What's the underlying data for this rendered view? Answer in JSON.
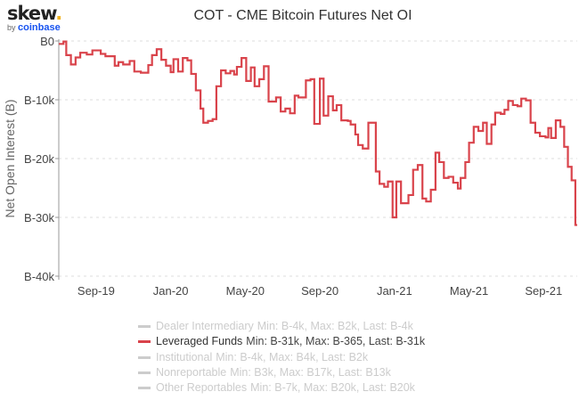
{
  "logo": {
    "brand": "skew",
    "dot": ".",
    "by": "by",
    "partner": "coinbase"
  },
  "chart_data": {
    "type": "line",
    "step": true,
    "title": "COT - CME Bitcoin Futures Net OI",
    "ylabel": "Net Open Interest (B)",
    "xlabel": "",
    "x_unit": "months since Jul-2019",
    "xlim": [
      0,
      27.8
    ],
    "ylim": [
      -40,
      0
    ],
    "y_unit": "thousand BTC",
    "yticks": [
      {
        "v": 0,
        "label": "B0"
      },
      {
        "v": -10,
        "label": "B-10k"
      },
      {
        "v": -20,
        "label": "B-20k"
      },
      {
        "v": -30,
        "label": "B-30k"
      },
      {
        "v": -40,
        "label": "B-40k"
      }
    ],
    "xticks": [
      {
        "v": 2,
        "label": "Sep-19"
      },
      {
        "v": 6,
        "label": "Jan-20"
      },
      {
        "v": 10,
        "label": "May-20"
      },
      {
        "v": 14,
        "label": "Sep-20"
      },
      {
        "v": 18,
        "label": "Jan-21"
      },
      {
        "v": 22,
        "label": "May-21"
      },
      {
        "v": 26,
        "label": "Sep-21"
      }
    ],
    "grid": true,
    "color": "#d9434b",
    "series": [
      {
        "name": "Leveraged Funds",
        "points": [
          [
            0,
            -0.5
          ],
          [
            0.25,
            -0.1
          ],
          [
            0.4,
            -2.4
          ],
          [
            0.65,
            -4.0
          ],
          [
            0.9,
            -2.8
          ],
          [
            1.15,
            -2.0
          ],
          [
            1.5,
            -2.3
          ],
          [
            1.8,
            -1.6
          ],
          [
            2.25,
            -2.2
          ],
          [
            2.5,
            -2.6
          ],
          [
            3.0,
            -4.2
          ],
          [
            3.2,
            -3.6
          ],
          [
            3.45,
            -4.0
          ],
          [
            3.8,
            -3.4
          ],
          [
            4.05,
            -5.2
          ],
          [
            4.4,
            -5.4
          ],
          [
            4.8,
            -4.1
          ],
          [
            5.0,
            -2.4
          ],
          [
            5.25,
            -1.4
          ],
          [
            5.5,
            -3.2
          ],
          [
            5.75,
            -4.2
          ],
          [
            6.0,
            -5.3
          ],
          [
            6.15,
            -3.1
          ],
          [
            6.4,
            -5.2
          ],
          [
            6.65,
            -2.9
          ],
          [
            6.9,
            -3.3
          ],
          [
            7.1,
            -5.6
          ],
          [
            7.35,
            -8.4
          ],
          [
            7.6,
            -11.5
          ],
          [
            7.75,
            -13.9
          ],
          [
            8.0,
            -13.6
          ],
          [
            8.25,
            -13.3
          ],
          [
            8.45,
            -7.7
          ],
          [
            8.7,
            -5.0
          ],
          [
            8.95,
            -5.5
          ],
          [
            9.2,
            -5.1
          ],
          [
            9.4,
            -5.7
          ],
          [
            9.55,
            -4.4
          ],
          [
            9.8,
            -2.9
          ],
          [
            10.05,
            -6.8
          ],
          [
            10.3,
            -4.5
          ],
          [
            10.5,
            -7.7
          ],
          [
            10.75,
            -6.5
          ],
          [
            11.0,
            -4.3
          ],
          [
            11.25,
            -10.3
          ],
          [
            11.65,
            -9.6
          ],
          [
            11.9,
            -12.0
          ],
          [
            12.15,
            -11.5
          ],
          [
            12.4,
            -12.3
          ],
          [
            12.65,
            -9.3
          ],
          [
            12.85,
            -9.6
          ],
          [
            13.25,
            -6.7
          ],
          [
            13.5,
            -6.5
          ],
          [
            13.7,
            -14.1
          ],
          [
            14.0,
            -6.4
          ],
          [
            14.2,
            -12.7
          ],
          [
            14.45,
            -9.4
          ],
          [
            14.7,
            -11.8
          ],
          [
            14.9,
            -10.9
          ],
          [
            15.15,
            -13.5
          ],
          [
            15.5,
            -13.6
          ],
          [
            15.65,
            -14.2
          ],
          [
            15.9,
            -15.9
          ],
          [
            16.05,
            -17.7
          ],
          [
            16.3,
            -18.3
          ],
          [
            16.6,
            -13.9
          ],
          [
            17.0,
            -22.2
          ],
          [
            17.2,
            -24.3
          ],
          [
            17.45,
            -24.8
          ],
          [
            17.65,
            -23.9
          ],
          [
            17.9,
            -30.0
          ],
          [
            18.1,
            -23.9
          ],
          [
            18.35,
            -27.6
          ],
          [
            18.75,
            -26.2
          ],
          [
            19.0,
            -21.9
          ],
          [
            19.25,
            -21.1
          ],
          [
            19.5,
            -26.8
          ],
          [
            19.7,
            -27.3
          ],
          [
            19.95,
            -25.3
          ],
          [
            20.2,
            -19.0
          ],
          [
            20.4,
            -20.6
          ],
          [
            20.65,
            -23.3
          ],
          [
            20.9,
            -23.1
          ],
          [
            21.15,
            -24.1
          ],
          [
            21.4,
            -25.1
          ],
          [
            21.55,
            -23.3
          ],
          [
            21.8,
            -20.6
          ],
          [
            22.0,
            -17.3
          ],
          [
            22.25,
            -14.6
          ],
          [
            22.5,
            -15.3
          ],
          [
            22.75,
            -13.9
          ],
          [
            22.95,
            -17.5
          ],
          [
            23.2,
            -14.2
          ],
          [
            23.4,
            -12.2
          ],
          [
            23.7,
            -12.4
          ],
          [
            23.9,
            -11.7
          ],
          [
            24.1,
            -10.2
          ],
          [
            24.35,
            -10.9
          ],
          [
            24.6,
            -11.1
          ],
          [
            24.8,
            -9.8
          ],
          [
            25.05,
            -10.1
          ],
          [
            25.3,
            -13.9
          ],
          [
            25.55,
            -15.6
          ],
          [
            25.8,
            -16.2
          ],
          [
            26.1,
            -16.4
          ],
          [
            26.25,
            -14.8
          ],
          [
            26.4,
            -16.5
          ],
          [
            26.65,
            -13.5
          ],
          [
            26.9,
            -14.6
          ],
          [
            27.1,
            -18.0
          ],
          [
            27.3,
            -21.4
          ],
          [
            27.5,
            -23.7
          ],
          [
            27.7,
            -31.3
          ]
        ]
      }
    ],
    "legend": [
      {
        "name": "Dealer Intermediary",
        "stats": "Min: B-4k, Max: B2k, Last: B-4k",
        "active": false,
        "color": "#cccccc"
      },
      {
        "name": "Leveraged Funds",
        "stats": "Min: B-31k, Max: B-365, Last: B-31k",
        "active": true,
        "color": "#d9434b"
      },
      {
        "name": "Institutional",
        "stats": "Min: B-4k, Max: B4k, Last: B2k",
        "active": false,
        "color": "#cccccc"
      },
      {
        "name": "Nonreportable",
        "stats": "Min: B3k, Max: B17k, Last: B13k",
        "active": false,
        "color": "#cccccc"
      },
      {
        "name": "Other Reportables",
        "stats": "Min: B-7k, Max: B20k, Last: B20k",
        "active": false,
        "color": "#cccccc"
      }
    ],
    "legend_position": "bottom"
  }
}
